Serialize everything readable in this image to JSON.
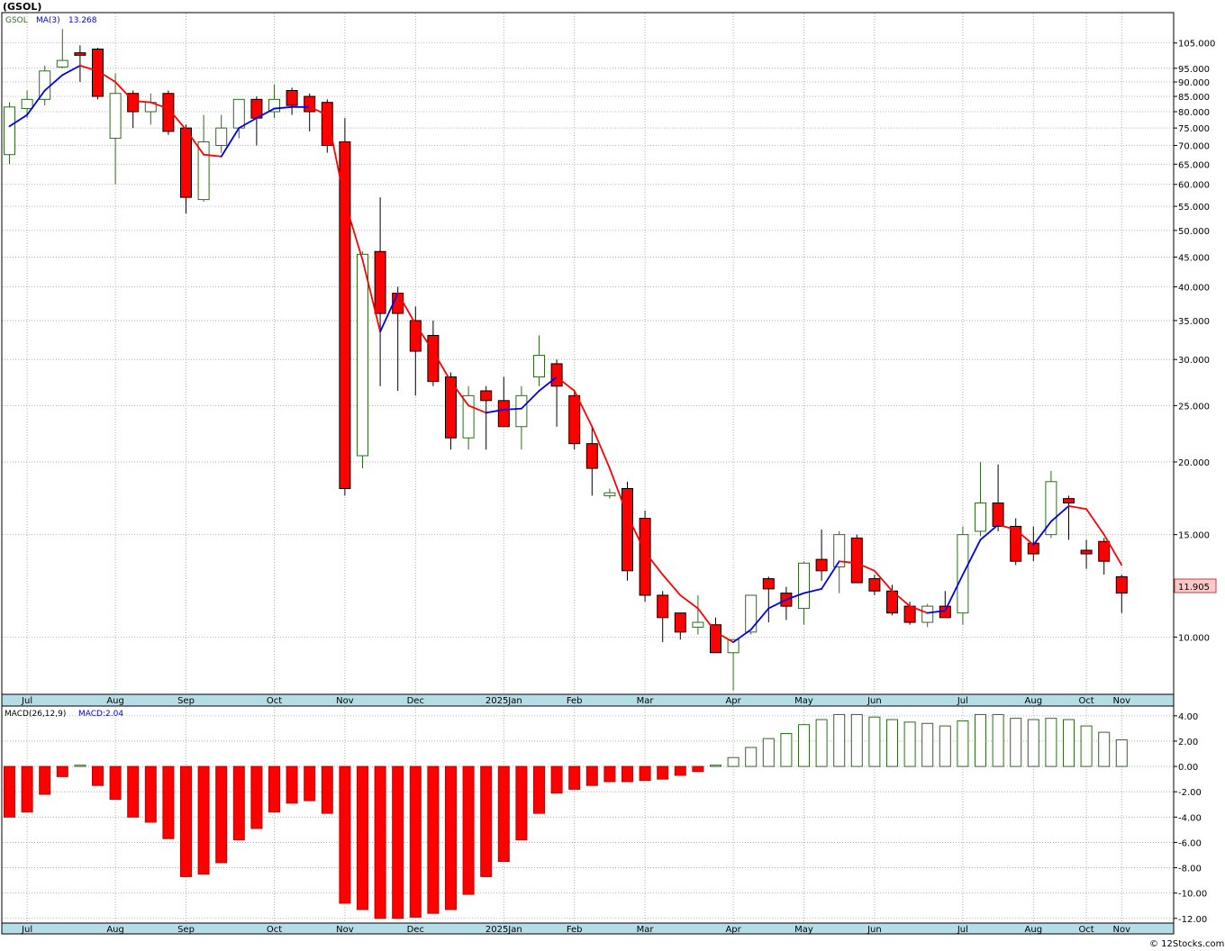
{
  "page": {
    "title": "(GSOL)",
    "copyright": "© 12Stocks.com"
  },
  "price_panel": {
    "symbol": "GSOL",
    "ma_label": "MA(3)",
    "ma_value": "13.268",
    "last_price_label": "11.905"
  },
  "macd_panel": {
    "label": "MACD(26,12,9)",
    "value_label": "MACD:2.04"
  },
  "colors": {
    "up_candle_border": "#2e6b1e",
    "down_candle_fill": "#ff0000",
    "ma_rising": "#0000ee",
    "ma_falling": "#ff0000",
    "axis_band": "#b5dde8",
    "last_price_badge": "#ffc8c8"
  },
  "chart_data": [
    {
      "type": "candlestick",
      "scale": "log",
      "y_ticks": [
        "105.000",
        "95.000",
        "90.000",
        "85.000",
        "80.000",
        "75.000",
        "70.000",
        "65.000",
        "60.000",
        "55.000",
        "50.000",
        "45.000",
        "40.000",
        "35.000",
        "30.000",
        "25.000",
        "20.000",
        "15.000",
        "10.000"
      ],
      "y_tick_values": [
        105,
        95,
        90,
        85,
        80,
        75,
        70,
        65,
        60,
        55,
        50,
        45,
        40,
        35,
        30,
        25,
        20,
        15,
        10
      ],
      "ylim": [
        8.0,
        118
      ],
      "x_labels": [
        {
          "label": "Jul",
          "week": 1
        },
        {
          "label": "Aug",
          "week": 6
        },
        {
          "label": "Sep",
          "week": 10
        },
        {
          "label": "Oct",
          "week": 15
        },
        {
          "label": "Nov",
          "week": 19
        },
        {
          "label": "Dec",
          "week": 23
        },
        {
          "label": "2025Jan",
          "week": 28
        },
        {
          "label": "Feb",
          "week": 32
        },
        {
          "label": "Mar",
          "week": 36
        },
        {
          "label": "Apr",
          "week": 41
        },
        {
          "label": "May",
          "week": 45
        },
        {
          "label": "Jun",
          "week": 49
        },
        {
          "label": "Jul",
          "week": 54
        },
        {
          "label": "Aug",
          "week": 58
        },
        {
          "label": "Oct",
          "week": 61
        },
        {
          "label": "Nov",
          "week": 63
        }
      ],
      "grid": true,
      "candles": [
        {
          "o": 67.5,
          "h": 83,
          "l": 65,
          "c": 81.5
        },
        {
          "o": 81,
          "h": 87,
          "l": 78,
          "c": 84
        },
        {
          "o": 84,
          "h": 96,
          "l": 82,
          "c": 94
        },
        {
          "o": 95.5,
          "h": 111,
          "l": 95,
          "c": 98
        },
        {
          "o": 101,
          "h": 104,
          "l": 90,
          "c": 100
        },
        {
          "o": 102.5,
          "h": 103,
          "l": 84,
          "c": 85
        },
        {
          "o": 72,
          "h": 93,
          "l": 60,
          "c": 86
        },
        {
          "o": 86,
          "h": 87,
          "l": 75,
          "c": 80
        },
        {
          "o": 80,
          "h": 86,
          "l": 76,
          "c": 83
        },
        {
          "o": 86,
          "h": 87,
          "l": 73,
          "c": 74
        },
        {
          "o": 75,
          "h": 76,
          "l": 53.5,
          "c": 57
        },
        {
          "o": 56.5,
          "h": 79,
          "l": 56,
          "c": 71
        },
        {
          "o": 70,
          "h": 79,
          "l": 68,
          "c": 75
        },
        {
          "o": 75,
          "h": 84,
          "l": 72,
          "c": 84
        },
        {
          "o": 84,
          "h": 85,
          "l": 70,
          "c": 78
        },
        {
          "o": 80,
          "h": 89,
          "l": 78,
          "c": 84
        },
        {
          "o": 87,
          "h": 88,
          "l": 79,
          "c": 82
        },
        {
          "o": 85,
          "h": 86,
          "l": 74,
          "c": 80
        },
        {
          "o": 83,
          "h": 84,
          "l": 68,
          "c": 70
        },
        {
          "o": 71,
          "h": 78,
          "l": 17.5,
          "c": 18
        },
        {
          "o": 20.5,
          "h": 46,
          "l": 19.5,
          "c": 45.5
        },
        {
          "o": 46,
          "h": 57,
          "l": 27,
          "c": 36
        },
        {
          "o": 39,
          "h": 40,
          "l": 26.5,
          "c": 36
        },
        {
          "o": 35,
          "h": 37,
          "l": 26,
          "c": 31
        },
        {
          "o": 33,
          "h": 35,
          "l": 27,
          "c": 27.5
        },
        {
          "o": 28,
          "h": 28.5,
          "l": 21,
          "c": 22
        },
        {
          "o": 22,
          "h": 27,
          "l": 21,
          "c": 26
        },
        {
          "o": 26.5,
          "h": 27,
          "l": 21,
          "c": 25.5
        },
        {
          "o": 25.5,
          "h": 28,
          "l": 23,
          "c": 23
        },
        {
          "o": 23,
          "h": 27,
          "l": 21,
          "c": 26
        },
        {
          "o": 28,
          "h": 33,
          "l": 27,
          "c": 30.5
        },
        {
          "o": 29.5,
          "h": 30,
          "l": 23,
          "c": 27
        },
        {
          "o": 26,
          "h": 26.5,
          "l": 21,
          "c": 21.5
        },
        {
          "o": 21.5,
          "h": 23,
          "l": 17.5,
          "c": 19.5
        },
        {
          "o": 17.5,
          "h": 18,
          "l": 17.3,
          "c": 17.7
        },
        {
          "o": 18,
          "h": 18.5,
          "l": 12.5,
          "c": 13
        },
        {
          "o": 16,
          "h": 16.5,
          "l": 11.5,
          "c": 11.8
        },
        {
          "o": 11.8,
          "h": 12,
          "l": 9.8,
          "c": 10.8
        },
        {
          "o": 11,
          "h": 11,
          "l": 9.9,
          "c": 10.2
        },
        {
          "o": 10.4,
          "h": 11.8,
          "l": 10.1,
          "c": 10.6
        },
        {
          "o": 10.5,
          "h": 10.8,
          "l": 9.4,
          "c": 9.4
        },
        {
          "o": 9.4,
          "h": 9.9,
          "l": 8.1,
          "c": 9.9
        },
        {
          "o": 10.2,
          "h": 11.8,
          "l": 10.1,
          "c": 11.8
        },
        {
          "o": 12.6,
          "h": 12.7,
          "l": 10.6,
          "c": 12.1
        },
        {
          "o": 11.9,
          "h": 12.2,
          "l": 10.7,
          "c": 11.3
        },
        {
          "o": 11.2,
          "h": 13.5,
          "l": 10.5,
          "c": 13.4
        },
        {
          "o": 13.6,
          "h": 15.3,
          "l": 12.5,
          "c": 13
        },
        {
          "o": 13.2,
          "h": 15.2,
          "l": 11.9,
          "c": 15
        },
        {
          "o": 14.8,
          "h": 15,
          "l": 12.4,
          "c": 12.4
        },
        {
          "o": 12.6,
          "h": 12.8,
          "l": 11.8,
          "c": 12
        },
        {
          "o": 12,
          "h": 12.3,
          "l": 10.9,
          "c": 11
        },
        {
          "o": 11.3,
          "h": 11.5,
          "l": 10.5,
          "c": 10.6
        },
        {
          "o": 10.6,
          "h": 11.4,
          "l": 10.4,
          "c": 11.3
        },
        {
          "o": 11.3,
          "h": 12,
          "l": 10.8,
          "c": 10.8
        },
        {
          "o": 11,
          "h": 15.5,
          "l": 10.5,
          "c": 15
        },
        {
          "o": 15.2,
          "h": 20,
          "l": 14.9,
          "c": 17
        },
        {
          "o": 17,
          "h": 19.8,
          "l": 15.2,
          "c": 15.5
        },
        {
          "o": 15.5,
          "h": 16,
          "l": 13.3,
          "c": 13.5
        },
        {
          "o": 14.5,
          "h": 15.5,
          "l": 13.5,
          "c": 13.9
        },
        {
          "o": 15,
          "h": 19.3,
          "l": 14.8,
          "c": 18.5
        },
        {
          "o": 17.3,
          "h": 17.5,
          "l": 14.7,
          "c": 17
        },
        {
          "o": 14.1,
          "h": 14.7,
          "l": 13.1,
          "c": 13.9
        },
        {
          "o": 14.6,
          "h": 14.8,
          "l": 12.8,
          "c": 13.5
        },
        {
          "o": 12.7,
          "h": 12.8,
          "l": 11,
          "c": 11.9
        }
      ],
      "ma3": [
        75.5,
        79,
        87,
        92.5,
        96,
        94,
        90,
        83.5,
        83,
        81,
        74.5,
        67.5,
        67,
        75,
        78,
        81,
        81.5,
        81.5,
        79,
        56,
        44.5,
        33.5,
        39,
        34.5,
        31,
        27.5,
        25,
        24.3,
        24.6,
        24.7,
        26.5,
        28,
        26.5,
        23,
        19.5,
        16.2,
        14,
        12.8,
        11.8,
        11.2,
        10.2,
        9.8,
        10.3,
        11.2,
        11.6,
        11.9,
        12.1,
        13.5,
        13.4,
        13,
        12,
        11.3,
        11,
        11.1,
        12.8,
        14.7,
        15.6,
        15.3,
        14.4,
        15.8,
        16.8,
        16.6,
        15,
        13.3
      ]
    },
    {
      "type": "bar",
      "name": "MACD(26,12,9)",
      "y_ticks": [
        "4.00",
        "2.00",
        "0.00",
        "-2.00",
        "-4.00",
        "-6.00",
        "-8.00",
        "-10.00",
        "-12.00"
      ],
      "y_tick_values": [
        4,
        2,
        0,
        -2,
        -4,
        -6,
        -8,
        -10,
        -12
      ],
      "ylim": [
        -12.3,
        4.7
      ],
      "values": [
        -4.0,
        -3.6,
        -2.2,
        -0.8,
        0.1,
        -1.5,
        -2.6,
        -4.0,
        -4.4,
        -5.7,
        -8.7,
        -8.5,
        -7.6,
        -5.8,
        -4.9,
        -3.6,
        -2.9,
        -2.7,
        -3.7,
        -10.8,
        -11.3,
        -12.0,
        -12.0,
        -11.9,
        -11.6,
        -11.3,
        -10.1,
        -8.7,
        -7.5,
        -5.8,
        -3.7,
        -2.1,
        -1.8,
        -1.5,
        -1.2,
        -1.2,
        -1.1,
        -1.0,
        -0.7,
        -0.4,
        0.1,
        0.7,
        1.5,
        2.2,
        2.6,
        3.3,
        3.7,
        4.1,
        4.1,
        3.9,
        3.7,
        3.5,
        3.4,
        3.2,
        3.6,
        4.1,
        4.1,
        3.8,
        3.7,
        3.8,
        3.7,
        3.2,
        2.7,
        2.1
      ]
    }
  ]
}
